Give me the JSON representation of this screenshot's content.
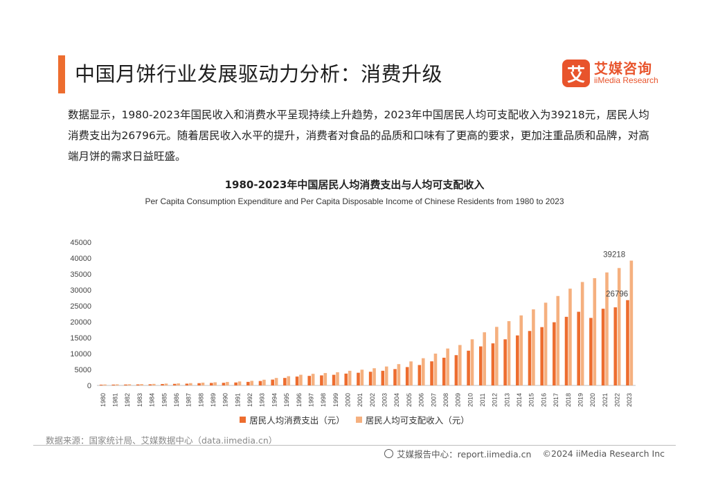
{
  "header": {
    "title": "中国月饼行业发展驱动力分析：消费升级",
    "logo_mark": "艾",
    "logo_cn": "艾媒咨询",
    "logo_en": "iiMedia Research"
  },
  "intro_text": "数据显示，1980-2023年国民收入和消费水平呈现持续上升趋势，2023年中国居民人均可支配收入为39218元，居民人均消费支出为26796元。随着居民收入水平的提升，消费者对食品的品质和口味有了更高的要求，更加注重品质和品牌，对高端月饼的需求日益旺盛。",
  "chart_data": {
    "type": "bar",
    "title": "1980-2023年中国居民人均消费支出与人均可支配收入",
    "subtitle": "Per Capita Consumption Expenditure and Per Capita Disposable Income of Chinese Residents from 1980 to 2023",
    "xlabel": "",
    "ylabel": "",
    "ylim": [
      0,
      45000
    ],
    "yticks": [
      0,
      5000,
      10000,
      15000,
      20000,
      25000,
      30000,
      35000,
      40000,
      45000
    ],
    "grid": false,
    "legend_position": "bottom",
    "categories": [
      "1980",
      "1981",
      "1982",
      "1983",
      "1984",
      "1985",
      "1986",
      "1987",
      "1988",
      "1989",
      "1990",
      "1991",
      "1992",
      "1993",
      "1994",
      "1995",
      "1996",
      "1997",
      "1998",
      "1999",
      "2000",
      "2001",
      "2002",
      "2003",
      "2004",
      "2005",
      "2006",
      "2007",
      "2008",
      "2009",
      "2010",
      "2011",
      "2012",
      "2013",
      "2014",
      "2015",
      "2016",
      "2017",
      "2018",
      "2019",
      "2020",
      "2021",
      "2022",
      "2023"
    ],
    "series": [
      {
        "name": "居民人均消费支出（元）",
        "color": "#ed6d2f",
        "values": [
          238,
          264,
          288,
          316,
          361,
          446,
          497,
          565,
          714,
          788,
          833,
          932,
          1116,
          1393,
          1833,
          2355,
          2789,
          3002,
          3159,
          3346,
          3721,
          3987,
          4301,
          4606,
          5138,
          5771,
          6416,
          7572,
          8707,
          9514,
          10919,
          12264,
          13220,
          14491,
          15712,
          17111,
          18322,
          19853,
          21559,
          23144,
          21210,
          24100,
          24538,
          26796
        ],
        "data_labels": {
          "2023": "26796"
        }
      },
      {
        "name": "居民人均可支配收入（元）",
        "color": "#f5b07f",
        "values": [
          300,
          340,
          380,
          420,
          480,
          580,
          640,
          720,
          880,
          990,
          1100,
          1250,
          1450,
          1790,
          2350,
          2900,
          3350,
          3650,
          3900,
          4150,
          4600,
          4950,
          5400,
          5950,
          6700,
          7550,
          8550,
          10000,
          11600,
          12700,
          14500,
          16700,
          18400,
          20200,
          22000,
          23900,
          26000,
          28100,
          30400,
          32500,
          33700,
          35500,
          36883,
          39218
        ],
        "data_labels": {
          "2023": "39218"
        }
      }
    ]
  },
  "source_text": "数据来源：国家统计局、艾媒数据中心（data.iimedia.cn）",
  "footer": {
    "report_text": "艾媒报告中心：report.iimedia.cn",
    "copyright_text": "©2024  iiMedia Research  Inc"
  }
}
